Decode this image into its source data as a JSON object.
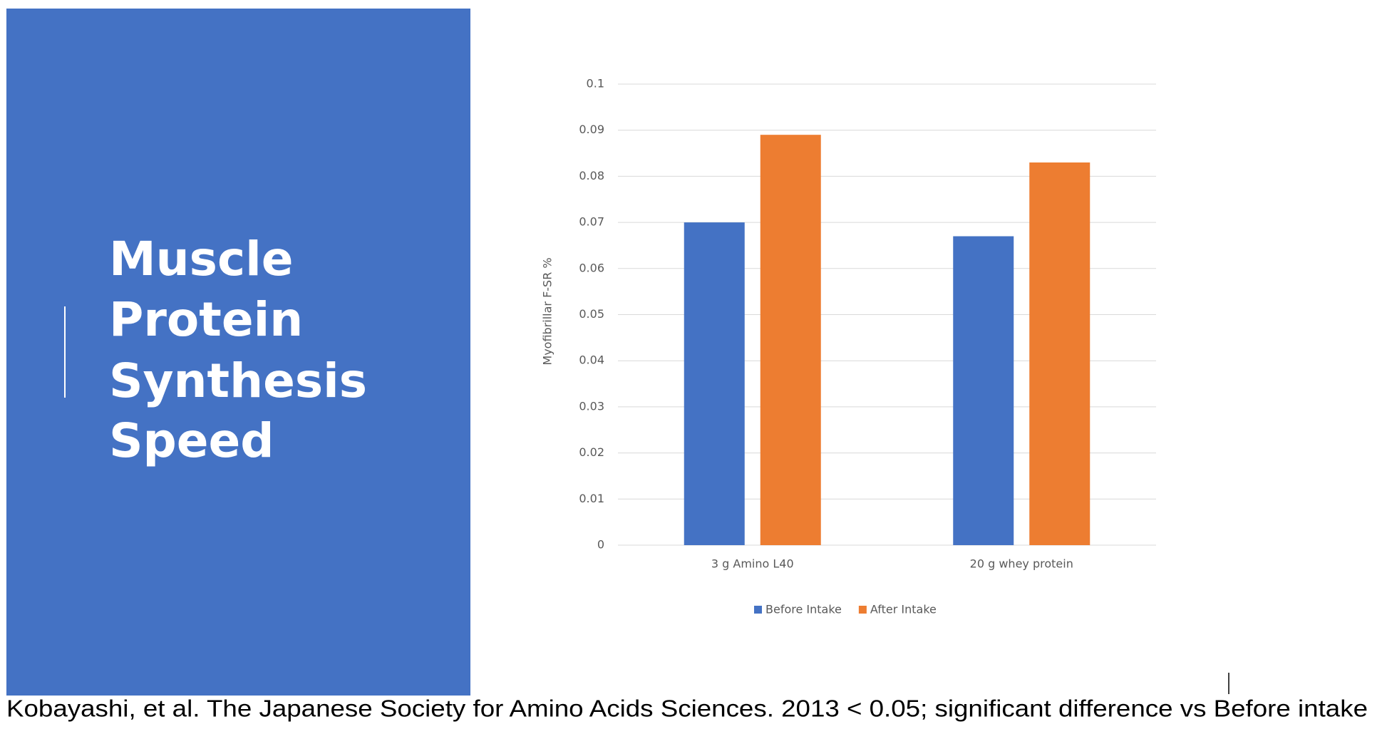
{
  "slide": {
    "title_lines": [
      "Muscle",
      "Protein",
      "Synthesis",
      "Speed"
    ],
    "caption": "Kobayashi, et al. The Japanese Society for Amino Acids Sciences. 2013 < 0.05; significant difference vs Before intake"
  },
  "chart_data": {
    "type": "bar",
    "y_label": "Myofibrillar F-SR %",
    "categories": [
      "3 g Amino L40",
      "20 g whey protein"
    ],
    "series": [
      {
        "name": "Before Intake",
        "color": "#4472c4",
        "values": [
          0.07,
          0.067
        ]
      },
      {
        "name": "After Intake",
        "color": "#ed7d31",
        "values": [
          0.089,
          0.083
        ]
      }
    ],
    "ylim": [
      0,
      0.1
    ],
    "yticks": [
      0,
      0.01,
      0.02,
      0.03,
      0.04,
      0.05,
      0.06,
      0.07,
      0.08,
      0.09,
      0.1
    ],
    "grid": true,
    "legend": "bottom"
  }
}
